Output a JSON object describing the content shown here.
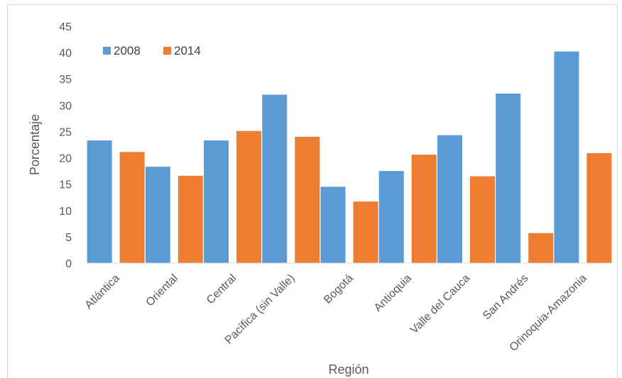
{
  "chart_data": {
    "type": "bar",
    "title": "",
    "xlabel": "Región",
    "ylabel": "Porcentaje",
    "ylim": [
      0,
      45
    ],
    "yticks": [
      0,
      5,
      10,
      15,
      20,
      25,
      30,
      35,
      40,
      45
    ],
    "grid": false,
    "legend_position": "top-left",
    "categories": [
      "Atlántica",
      "Oriental",
      "Central",
      "Pacífica (sin Valle)",
      "Bogotá",
      "Antioquia",
      "Valle del Cauca",
      "San Andrés",
      "Orinoquia-Amazonia"
    ],
    "series": [
      {
        "name": "2008",
        "color": "#5b9bd5",
        "values": [
          23.3,
          18.3,
          23.3,
          32.0,
          14.5,
          17.5,
          24.3,
          32.2,
          40.2
        ]
      },
      {
        "name": "2014",
        "color": "#ed7d31",
        "values": [
          21.1,
          16.6,
          25.1,
          24.0,
          11.7,
          20.6,
          16.5,
          5.7,
          20.9
        ]
      }
    ]
  }
}
